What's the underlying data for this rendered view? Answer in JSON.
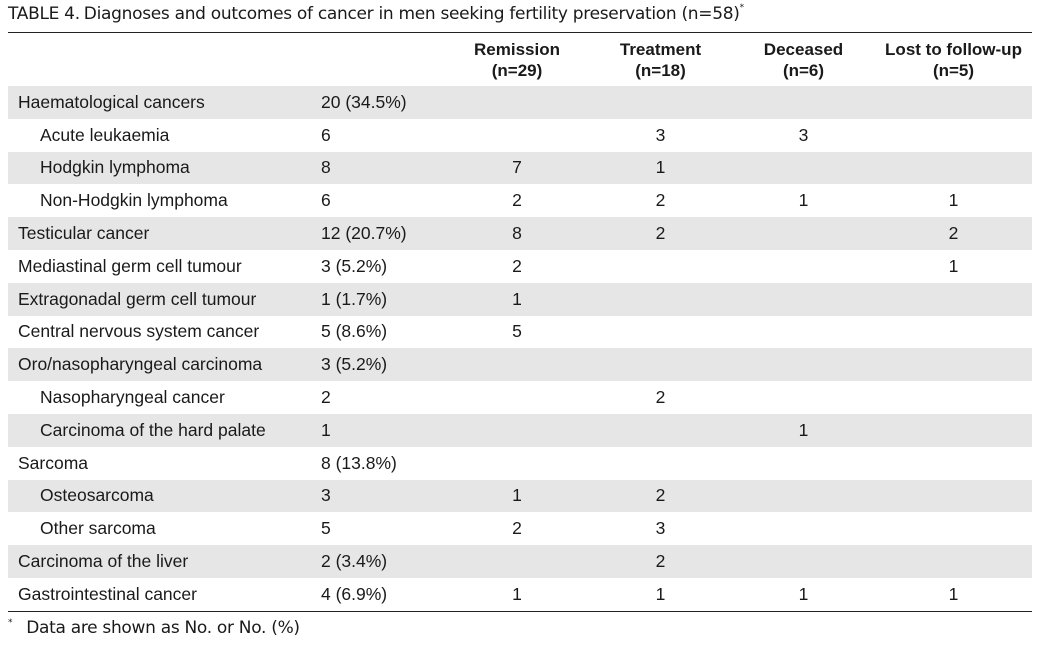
{
  "caption": {
    "label": "TABLE 4.",
    "text": "Diagnoses and outcomes of cancer in men seeking fertility preservation (n=58)",
    "marker": "*"
  },
  "columns": [
    {
      "title": "",
      "subtitle": ""
    },
    {
      "title": "",
      "subtitle": ""
    },
    {
      "title": "Remission",
      "subtitle": "(n=29)"
    },
    {
      "title": "Treatment",
      "subtitle": "(n=18)"
    },
    {
      "title": "Deceased",
      "subtitle": "(n=6)"
    },
    {
      "title": "Lost to follow-up",
      "subtitle": "(n=5)"
    }
  ],
  "rows": [
    {
      "name": "Haematological cancers",
      "total": "20 (34.5%)",
      "remission": "",
      "treatment": "",
      "deceased": "",
      "lost": "",
      "sub": false,
      "shaded": true
    },
    {
      "name": "Acute leukaemia",
      "total": "6",
      "remission": "",
      "treatment": "3",
      "deceased": "3",
      "lost": "",
      "sub": true,
      "shaded": false
    },
    {
      "name": "Hodgkin lymphoma",
      "total": "8",
      "remission": "7",
      "treatment": "1",
      "deceased": "",
      "lost": "",
      "sub": true,
      "shaded": true
    },
    {
      "name": "Non-Hodgkin lymphoma",
      "total": "6",
      "remission": "2",
      "treatment": "2",
      "deceased": "1",
      "lost": "1",
      "sub": true,
      "shaded": false
    },
    {
      "name": "Testicular cancer",
      "total": "12 (20.7%)",
      "remission": "8",
      "treatment": "2",
      "deceased": "",
      "lost": "2",
      "sub": false,
      "shaded": true
    },
    {
      "name": "Mediastinal germ cell tumour",
      "total": "3 (5.2%)",
      "remission": "2",
      "treatment": "",
      "deceased": "",
      "lost": "1",
      "sub": false,
      "shaded": false
    },
    {
      "name": "Extragonadal germ cell tumour",
      "total": "1 (1.7%)",
      "remission": "1",
      "treatment": "",
      "deceased": "",
      "lost": "",
      "sub": false,
      "shaded": true
    },
    {
      "name": "Central nervous system cancer",
      "total": "5 (8.6%)",
      "remission": "5",
      "treatment": "",
      "deceased": "",
      "lost": "",
      "sub": false,
      "shaded": false
    },
    {
      "name": "Oro/nasopharyngeal carcinoma",
      "total": "3 (5.2%)",
      "remission": "",
      "treatment": "",
      "deceased": "",
      "lost": "",
      "sub": false,
      "shaded": true
    },
    {
      "name": "Nasopharyngeal cancer",
      "total": "2",
      "remission": "",
      "treatment": "2",
      "deceased": "",
      "lost": "",
      "sub": true,
      "shaded": false
    },
    {
      "name": "Carcinoma of the hard palate",
      "total": "1",
      "remission": "",
      "treatment": "",
      "deceased": "1",
      "lost": "",
      "sub": true,
      "shaded": true
    },
    {
      "name": "Sarcoma",
      "total": "8 (13.8%)",
      "remission": "",
      "treatment": "",
      "deceased": "",
      "lost": "",
      "sub": false,
      "shaded": false
    },
    {
      "name": "Osteosarcoma",
      "total": "3",
      "remission": "1",
      "treatment": "2",
      "deceased": "",
      "lost": "",
      "sub": true,
      "shaded": true
    },
    {
      "name": "Other sarcoma",
      "total": "5",
      "remission": "2",
      "treatment": "3",
      "deceased": "",
      "lost": "",
      "sub": true,
      "shaded": false
    },
    {
      "name": "Carcinoma of the liver",
      "total": "2 (3.4%)",
      "remission": "",
      "treatment": "2",
      "deceased": "",
      "lost": "",
      "sub": false,
      "shaded": true
    },
    {
      "name": "Gastrointestinal cancer",
      "total": "4 (6.9%)",
      "remission": "1",
      "treatment": "1",
      "deceased": "1",
      "lost": "1",
      "sub": false,
      "shaded": false
    }
  ],
  "footnote": {
    "marker": "*",
    "text": "Data are shown as No. or No. (%)"
  }
}
